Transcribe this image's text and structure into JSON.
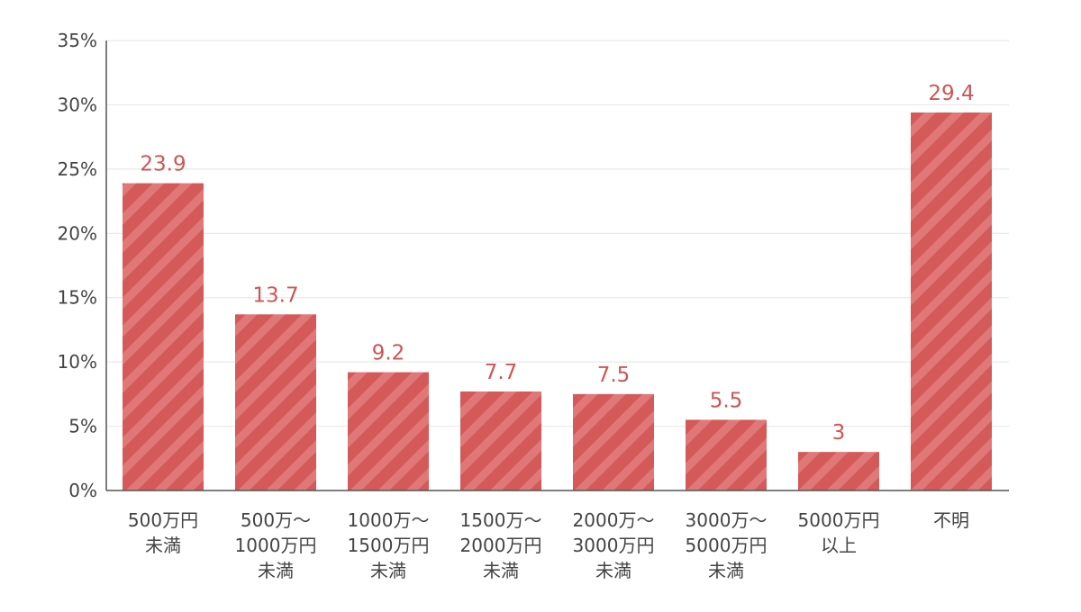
{
  "chart_data": {
    "type": "bar",
    "categories": [
      [
        "500万円",
        "未満"
      ],
      [
        "500万〜",
        "1000万円",
        "未満"
      ],
      [
        "1000万〜",
        "1500万円",
        "未満"
      ],
      [
        "1500万〜",
        "2000万円",
        "未満"
      ],
      [
        "2000万〜",
        "3000万円",
        "未満"
      ],
      [
        "3000万〜",
        "5000万円",
        "未満"
      ],
      [
        "5000万円",
        "以上"
      ],
      [
        "不明"
      ]
    ],
    "values": [
      23.9,
      13.7,
      9.2,
      7.7,
      7.5,
      5.5,
      3,
      29.4
    ],
    "data_labels": [
      "23.9",
      "13.7",
      "9.2",
      "7.7",
      "7.5",
      "5.5",
      "3",
      "29.4"
    ],
    "title": "",
    "xlabel": "",
    "ylabel": "",
    "ylim": [
      0,
      35
    ],
    "yticks": [
      0,
      5,
      10,
      15,
      20,
      25,
      30,
      35
    ],
    "ytick_labels": [
      "0%",
      "5%",
      "10%",
      "15%",
      "20%",
      "25%",
      "30%",
      "35%"
    ],
    "grid": true,
    "legend": "none",
    "colors": {
      "bar": "#d45a5a",
      "bar_stripe": "#e07878",
      "label": "#d05454",
      "axis": "#555555",
      "grid": "#e4e4e4",
      "text": "#444444"
    }
  }
}
